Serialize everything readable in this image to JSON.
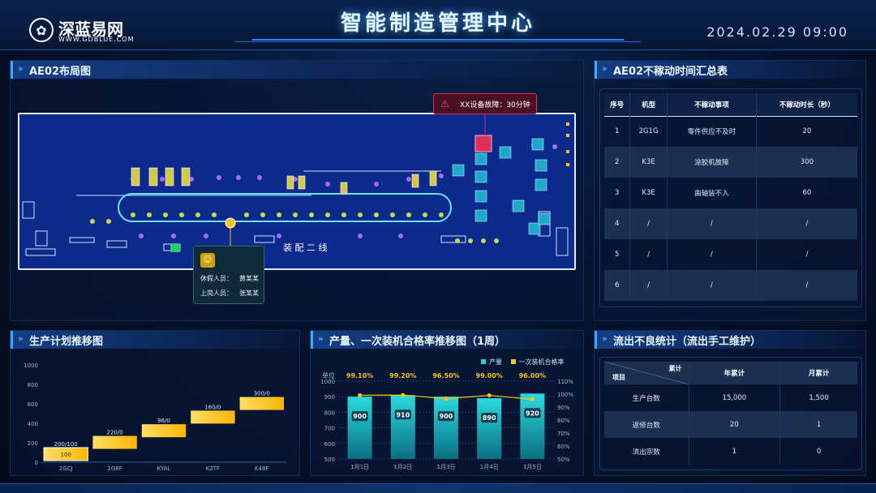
{
  "header": {
    "title": "智能制造管理中心",
    "datetime": "2024.02.29   09:00",
    "logo_name": "深蓝易网",
    "logo_sub": "WWW.GDBLUE.COM"
  },
  "layout_panel": {
    "title": "AE02布局图",
    "line_label": "装 配 二 线",
    "alert": "XX设备故障：30分钟",
    "popup": {
      "row1_label": "休假人员：",
      "row1_value": "黄某某",
      "row2_label": "上岗人员：",
      "row2_value": "张某某"
    }
  },
  "downtime_panel": {
    "title": "AE02不稼动时间汇总表",
    "columns": [
      "序号",
      "机型",
      "不稼动事项",
      "不稼动时长（秒）"
    ],
    "rows": [
      [
        "1",
        "2G1G",
        "零件供应不及时",
        "20"
      ],
      [
        "2",
        "K3E",
        "涂胶机故障",
        "300"
      ],
      [
        "3",
        "K3E",
        "曲轴装不入",
        "60"
      ],
      [
        "4",
        "/",
        "/",
        "/"
      ],
      [
        "5",
        "/",
        "/",
        "/"
      ],
      [
        "6",
        "/",
        "/",
        "/"
      ]
    ]
  },
  "plan_panel": {
    "title": "生产计划推移图"
  },
  "output_panel": {
    "title": "产量、一次装机合格率推移图（1周）",
    "legend_output": "产量",
    "legend_rate": "一次装机合格率",
    "unit_label": "单位"
  },
  "defect_panel": {
    "title": "流出不良统计（流出手工维护）",
    "corner_top": "累计",
    "corner_bottom": "项目",
    "col_year": "年累计",
    "col_month": "月累计",
    "rows": [
      [
        "生产台数",
        "15,000",
        "1,500"
      ],
      [
        "返修台数",
        "20",
        "1"
      ],
      [
        "流出宗数",
        "1",
        "0"
      ]
    ]
  },
  "colors": {
    "accent": "#3fa8ff",
    "bar_cyan": "#1fd3d3",
    "line_yellow": "#f5c518",
    "gantt_yellow": "#ffd84a",
    "alert_red": "#d8315a"
  },
  "chart_data": [
    {
      "type": "bar",
      "title": "生产计划推移图",
      "categories": [
        "2GCJ",
        "2G8F",
        "KYAL",
        "K2TF",
        "K48F"
      ],
      "values": [
        100,
        220,
        96,
        160,
        300
      ],
      "labels": [
        "200/100",
        "220/0",
        "96/0",
        "160/0",
        "300/0"
      ],
      "inner_label": "100",
      "ylim": [
        0,
        1000
      ],
      "yticks": [
        "0",
        "200",
        "400",
        "600",
        "800",
        "1000"
      ]
    },
    {
      "type": "bar",
      "title": "产量、一次装机合格率推移图（1周）",
      "categories": [
        "1月1日",
        "1月2日",
        "1月3日",
        "1月4日",
        "1月5日"
      ],
      "series": [
        {
          "name": "产量",
          "values": [
            900,
            910,
            900,
            890,
            920
          ]
        },
        {
          "name": "一次装机合格率",
          "values": [
            99.1,
            99.2,
            96.5,
            99.0,
            96.0
          ]
        }
      ],
      "rate_labels": [
        "99.10%",
        "99.20%",
        "96.50%",
        "99.00%",
        "96.00%"
      ],
      "yticks_left": [
        "500",
        "600",
        "700",
        "800",
        "900",
        "1000"
      ],
      "yticks_right": [
        "50%",
        "60%",
        "70%",
        "80%",
        "90%",
        "100%",
        "110%"
      ],
      "ylim_left": [
        500,
        1000
      ],
      "ylim_right": [
        50,
        110
      ]
    }
  ]
}
